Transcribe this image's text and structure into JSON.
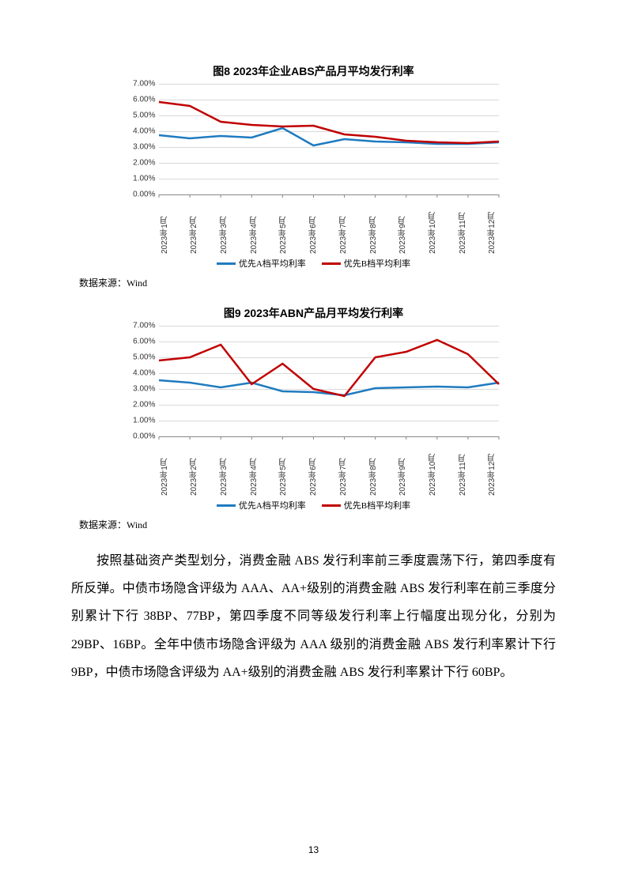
{
  "chart1": {
    "title": "图8 2023年企业ABS产品月平均发行利率",
    "type": "line",
    "background_color": "#ffffff",
    "grid_color": "#d9d9d9",
    "ymin": 0.0,
    "ymax": 7.0,
    "y_ticks": [
      "0.00%",
      "1.00%",
      "2.00%",
      "3.00%",
      "4.00%",
      "5.00%",
      "6.00%",
      "7.00%"
    ],
    "x_labels": [
      "2023年1月",
      "2023年2月",
      "2023年3月",
      "2023年4月",
      "2023年5月",
      "2023年6月",
      "2023年7月",
      "2023年8月",
      "2023年9月",
      "2023年10月",
      "2023年11月",
      "2023年12月"
    ],
    "series": [
      {
        "name": "优先A档平均利率",
        "color": "#1f7bbf",
        "width": 2.5,
        "values": [
          3.75,
          3.55,
          3.7,
          3.6,
          4.2,
          3.1,
          3.5,
          3.35,
          3.3,
          3.2,
          3.2,
          3.3
        ]
      },
      {
        "name": "优先B档平均利率",
        "color": "#c00000",
        "width": 2.5,
        "values": [
          5.85,
          5.6,
          4.6,
          4.4,
          4.3,
          4.35,
          3.8,
          3.65,
          3.4,
          3.3,
          3.25,
          3.35
        ]
      }
    ],
    "legend_fontsize": 11,
    "axis_fontsize": 10
  },
  "chart2": {
    "title": "图9 2023年ABN产品月平均发行利率",
    "type": "line",
    "background_color": "#ffffff",
    "grid_color": "#d9d9d9",
    "ymin": 0.0,
    "ymax": 7.0,
    "y_ticks": [
      "0.00%",
      "1.00%",
      "2.00%",
      "3.00%",
      "4.00%",
      "5.00%",
      "6.00%",
      "7.00%"
    ],
    "x_labels": [
      "2023年1月",
      "2023年2月",
      "2023年3月",
      "2023年4月",
      "2023年5月",
      "2023年6月",
      "2023年7月",
      "2023年8月",
      "2023年9月",
      "2023年10月",
      "2023年11月",
      "2023年12月"
    ],
    "series": [
      {
        "name": "优先A档平均利率",
        "color": "#1f7bbf",
        "width": 2.5,
        "values": [
          3.55,
          3.4,
          3.1,
          3.4,
          2.85,
          2.8,
          2.6,
          3.05,
          3.1,
          3.15,
          3.1,
          3.4
        ]
      },
      {
        "name": "优先B档平均利率",
        "color": "#c00000",
        "width": 2.5,
        "values": [
          4.8,
          5.0,
          5.8,
          3.3,
          4.6,
          3.0,
          2.55,
          5.0,
          5.35,
          6.1,
          5.2,
          3.3
        ]
      }
    ],
    "legend_fontsize": 11,
    "axis_fontsize": 10
  },
  "data_source_label": "数据来源：Wind",
  "body_paragraph": "按照基础资产类型划分，消费金融 ABS 发行利率前三季度震荡下行，第四季度有所反弹。中债市场隐含评级为 AAA、AA+级别的消费金融 ABS 发行利率在前三季度分别累计下行 38BP、77BP，第四季度不同等级发行利率上行幅度出现分化，分别为 29BP、16BP。全年中债市场隐含评级为 AAA 级别的消费金融 ABS 发行利率累计下行 9BP，中债市场隐含评级为 AA+级别的消费金融 ABS 发行利率累计下行 60BP。",
  "page_number": "13"
}
